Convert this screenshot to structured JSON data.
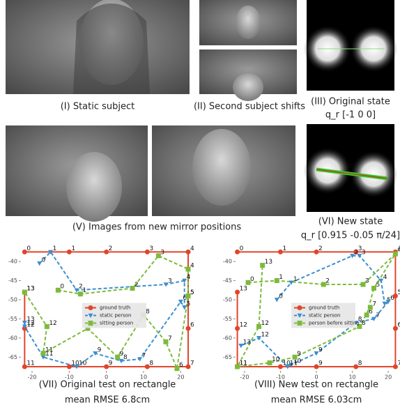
{
  "figure": {
    "captions": [
      "(I) Static subject",
      "(II) Second subject shifts",
      "(III) Original state",
      "q_r [-1 0 0]",
      "(V) Images from new mirror positions",
      "(VI) New state",
      "q_r [0.915 -0.05 π/24]"
    ]
  },
  "chart_data": [
    {
      "type": "line",
      "caption": "(VII) Original test on rectangle",
      "subcaption": "mean RMSE 6.8cm",
      "xlim": [
        -23,
        23.5
      ],
      "ylim": [
        -68.6,
        -36.7
      ],
      "xticks": [
        -20,
        -10,
        0,
        10,
        20
      ],
      "yticks": [
        -40,
        -45,
        -50,
        -55,
        -60,
        -65
      ],
      "legend": "center",
      "point_labels": [
        "0",
        "1",
        "2",
        "3",
        "4",
        "5",
        "6",
        "7",
        "8",
        "9",
        "10",
        "11",
        "12",
        "13"
      ],
      "series": [
        {
          "name": "ground truth",
          "color": "#e0452c",
          "marker": "circle",
          "linestyle": "solid",
          "x": [
            -22,
            -10,
            0,
            11,
            22,
            22,
            22,
            22,
            11,
            0,
            -10,
            -22,
            -22,
            -22
          ],
          "values": [
            -37.5,
            -37.5,
            -37.5,
            -37.5,
            -37.5,
            -49,
            -57.5,
            -67.5,
            -67.5,
            -67.5,
            -67.5,
            -67.5,
            -57.5,
            -48
          ]
        },
        {
          "name": "static person",
          "color": "#3a8fd0",
          "marker": "triangle",
          "linestyle": "dashed",
          "x": [
            -18,
            -15,
            -8,
            16,
            21,
            21,
            20,
            9,
            4,
            -3,
            -8,
            -17,
            -22,
            -22
          ],
          "values": [
            -40.5,
            -37.5,
            -47.5,
            -46,
            -45,
            -52,
            -50.5,
            -65.5,
            -66,
            -64,
            -67.5,
            -65,
            -57,
            -56
          ]
        },
        {
          "name": "sitting person",
          "color": "#7dba3b",
          "marker": "square",
          "linestyle": "dashed",
          "x": [
            -13,
            -7,
            7,
            14,
            22,
            22,
            19,
            16,
            10,
            3,
            -5,
            -17,
            -16,
            -22
          ],
          "values": [
            -47.5,
            -48.5,
            -47,
            -38.5,
            -42,
            -49,
            -68,
            -61,
            -54,
            -65,
            -57.5,
            -64,
            -57,
            -48
          ]
        }
      ]
    },
    {
      "type": "line",
      "caption": "(VIII) New test on rectangle",
      "subcaption": "mean RMSE 6.03cm",
      "xlim": [
        -22.5,
        22.5
      ],
      "ylim": [
        -68.6,
        -36.7
      ],
      "xticks": [
        -20,
        -10,
        0,
        10,
        20
      ],
      "yticks": [
        -40,
        -45,
        -50,
        -55,
        -60,
        -65
      ],
      "legend": "center",
      "point_labels": [
        "0",
        "1",
        "2",
        "3",
        "4",
        "5",
        "6",
        "7",
        "8",
        "9",
        "10",
        "11",
        "12",
        "13"
      ],
      "series": [
        {
          "name": "ground truth",
          "color": "#e0452c",
          "marker": "circle",
          "linestyle": "solid",
          "x": [
            -22,
            -10,
            0,
            11,
            22,
            22,
            22,
            22,
            11,
            0,
            -10,
            -22,
            -22,
            -22
          ],
          "values": [
            -37.5,
            -37.5,
            -37.5,
            -37.5,
            -37.5,
            -49,
            -57.5,
            -67.5,
            -67.5,
            -67.5,
            -67.5,
            -67.5,
            -57.5,
            -48
          ]
        },
        {
          "name": "static person",
          "color": "#3a8fd0",
          "marker": "triangle",
          "linestyle": "dashed",
          "x": [
            -11,
            -7,
            10,
            12,
            18,
            19,
            20,
            16,
            11,
            0,
            -7,
            -8,
            -16,
            -21
          ],
          "values": [
            -50,
            -45.5,
            -38.5,
            -38.5,
            -45,
            -51,
            -50.5,
            -55,
            -56,
            -64,
            -67,
            -67.5,
            -60,
            -62
          ]
        },
        {
          "name": "person before sitting",
          "color": "#7dba3b",
          "marker": "square",
          "linestyle": "dashed",
          "x": [
            -19,
            -11,
            2,
            13,
            22,
            16,
            14,
            15,
            12,
            -6,
            -13,
            -22,
            -16,
            -15
          ],
          "values": [
            -45.5,
            -45,
            -46,
            -46,
            -38,
            -47,
            -54,
            -52,
            -57,
            -65,
            -66.5,
            -67.5,
            -57,
            -41
          ]
        }
      ]
    }
  ]
}
